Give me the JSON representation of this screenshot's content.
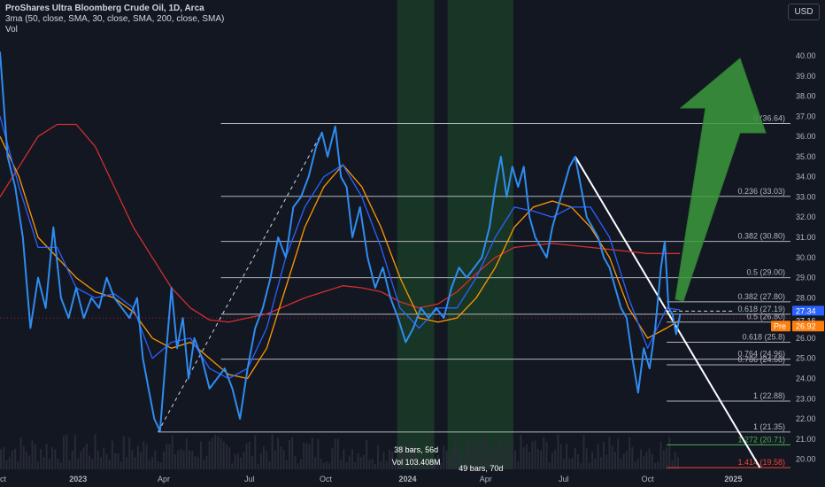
{
  "legend": {
    "title": "ProShares Ultra Bloomberg Crude Oil, 1D, Arca",
    "ma": "3ma (50, close, SMA, 30, close, SMA, 200, close, SMA)",
    "vol": "Vol"
  },
  "currency_button": "USD",
  "colors": {
    "background": "#131722",
    "price": "#2f8cf0",
    "sma50": "#ff9800",
    "sma30": "#2962ff",
    "sma200": "#d32f2f",
    "fib_line": "#b2b5be",
    "highlight_zone": "#1e5e2a",
    "arrow": "#3c9a3c",
    "pre_badge": "#ff7f0e",
    "last_badge": "#2962ff"
  },
  "chart_data": {
    "type": "line",
    "title": "ProShares Ultra Bloomberg Crude Oil, 1D, Arca",
    "ylim": [
      19.5,
      41.8
    ],
    "y_ticks": [
      20.0,
      21.0,
      22.0,
      23.0,
      24.0,
      25.0,
      26.0,
      27.0,
      28.0,
      29.0,
      30.0,
      31.0,
      32.0,
      33.0,
      34.0,
      35.0,
      36.0,
      37.0,
      38.0,
      39.0,
      40.0
    ],
    "x_tick_labels": [
      "Oct",
      "2023",
      "Apr",
      "Jul",
      "Oct",
      "2024",
      "Apr",
      "Jul",
      "Oct",
      "2025"
    ],
    "x_tick_index": [
      0,
      82,
      172,
      262,
      342,
      428,
      510,
      592,
      680,
      770
    ],
    "x_max_index": 830,
    "series": [
      {
        "name": "ProShares Ultra Bloomberg Crude Oil",
        "points": [
          [
            0,
            40.2
          ],
          [
            8,
            35.0
          ],
          [
            16,
            33.5
          ],
          [
            24,
            31.0
          ],
          [
            32,
            26.5
          ],
          [
            40,
            29.0
          ],
          [
            48,
            27.5
          ],
          [
            56,
            31.5
          ],
          [
            64,
            28.0
          ],
          [
            72,
            27.0
          ],
          [
            80,
            28.5
          ],
          [
            88,
            27.0
          ],
          [
            96,
            28.0
          ],
          [
            104,
            27.5
          ],
          [
            112,
            29.0
          ],
          [
            120,
            28.0
          ],
          [
            128,
            27.5
          ],
          [
            136,
            27.0
          ],
          [
            144,
            28.0
          ],
          [
            150,
            25.0
          ],
          [
            156,
            23.5
          ],
          [
            162,
            22.0
          ],
          [
            168,
            21.4
          ],
          [
            174,
            25.0
          ],
          [
            180,
            28.5
          ],
          [
            186,
            25.5
          ],
          [
            192,
            27.0
          ],
          [
            198,
            24.0
          ],
          [
            204,
            26.0
          ],
          [
            212,
            25.0
          ],
          [
            220,
            23.5
          ],
          [
            228,
            24.0
          ],
          [
            236,
            24.5
          ],
          [
            244,
            23.5
          ],
          [
            252,
            22.0
          ],
          [
            260,
            24.5
          ],
          [
            268,
            26.5
          ],
          [
            276,
            27.5
          ],
          [
            284,
            29.0
          ],
          [
            292,
            31.0
          ],
          [
            300,
            30.0
          ],
          [
            308,
            32.5
          ],
          [
            316,
            33.0
          ],
          [
            324,
            34.0
          ],
          [
            332,
            35.5
          ],
          [
            338,
            36.2
          ],
          [
            344,
            35.0
          ],
          [
            352,
            36.5
          ],
          [
            358,
            34.0
          ],
          [
            364,
            33.5
          ],
          [
            370,
            31.0
          ],
          [
            378,
            32.5
          ],
          [
            386,
            30.0
          ],
          [
            394,
            28.5
          ],
          [
            402,
            29.5
          ],
          [
            410,
            28.0
          ],
          [
            418,
            27.0
          ],
          [
            426,
            25.8
          ],
          [
            434,
            26.5
          ],
          [
            442,
            27.5
          ],
          [
            450,
            27.0
          ],
          [
            458,
            27.5
          ],
          [
            466,
            27.0
          ],
          [
            474,
            28.5
          ],
          [
            482,
            29.5
          ],
          [
            490,
            29.0
          ],
          [
            498,
            29.5
          ],
          [
            506,
            30.0
          ],
          [
            514,
            31.5
          ],
          [
            520,
            33.5
          ],
          [
            526,
            35.0
          ],
          [
            532,
            33.0
          ],
          [
            538,
            34.5
          ],
          [
            544,
            33.5
          ],
          [
            550,
            34.5
          ],
          [
            556,
            32.0
          ],
          [
            562,
            31.0
          ],
          [
            568,
            30.5
          ],
          [
            574,
            30.0
          ],
          [
            580,
            31.5
          ],
          [
            586,
            32.5
          ],
          [
            592,
            33.5
          ],
          [
            598,
            34.5
          ],
          [
            604,
            35.0
          ],
          [
            610,
            33.5
          ],
          [
            616,
            32.0
          ],
          [
            622,
            31.5
          ],
          [
            628,
            31.0
          ],
          [
            634,
            30.0
          ],
          [
            640,
            29.5
          ],
          [
            646,
            28.5
          ],
          [
            652,
            27.5
          ],
          [
            658,
            27.0
          ],
          [
            664,
            25.0
          ],
          [
            670,
            23.3
          ],
          [
            676,
            25.5
          ],
          [
            682,
            24.5
          ],
          [
            688,
            26.5
          ],
          [
            694,
            29.5
          ],
          [
            698,
            30.8
          ],
          [
            702,
            27.5
          ],
          [
            706,
            27.2
          ],
          [
            710,
            26.2
          ],
          [
            714,
            27.16
          ]
        ]
      },
      {
        "name": "SMA 50",
        "points": [
          [
            0,
            36.0
          ],
          [
            20,
            34.0
          ],
          [
            40,
            31.0
          ],
          [
            60,
            30.0
          ],
          [
            80,
            29.0
          ],
          [
            100,
            28.3
          ],
          [
            120,
            28.0
          ],
          [
            140,
            27.3
          ],
          [
            160,
            26.0
          ],
          [
            180,
            25.5
          ],
          [
            200,
            25.8
          ],
          [
            220,
            25.0
          ],
          [
            240,
            24.2
          ],
          [
            260,
            24.0
          ],
          [
            280,
            25.5
          ],
          [
            300,
            28.5
          ],
          [
            320,
            31.5
          ],
          [
            340,
            33.5
          ],
          [
            360,
            34.6
          ],
          [
            380,
            33.5
          ],
          [
            400,
            31.5
          ],
          [
            420,
            29.0
          ],
          [
            440,
            27.0
          ],
          [
            460,
            26.8
          ],
          [
            480,
            27.0
          ],
          [
            500,
            28.0
          ],
          [
            520,
            29.5
          ],
          [
            540,
            31.5
          ],
          [
            560,
            32.5
          ],
          [
            580,
            32.8
          ],
          [
            600,
            32.5
          ],
          [
            620,
            31.5
          ],
          [
            640,
            30.0
          ],
          [
            660,
            27.5
          ],
          [
            680,
            26.0
          ],
          [
            700,
            26.5
          ],
          [
            714,
            26.9
          ]
        ]
      },
      {
        "name": "SMA 30",
        "points": [
          [
            0,
            37.0
          ],
          [
            20,
            33.5
          ],
          [
            40,
            30.5
          ],
          [
            60,
            30.5
          ],
          [
            80,
            28.5
          ],
          [
            100,
            28.0
          ],
          [
            120,
            28.2
          ],
          [
            140,
            27.5
          ],
          [
            160,
            25.0
          ],
          [
            180,
            25.8
          ],
          [
            200,
            26.0
          ],
          [
            220,
            24.5
          ],
          [
            240,
            24.0
          ],
          [
            260,
            24.5
          ],
          [
            280,
            26.5
          ],
          [
            300,
            30.0
          ],
          [
            320,
            32.5
          ],
          [
            340,
            34.0
          ],
          [
            360,
            34.6
          ],
          [
            380,
            33.0
          ],
          [
            400,
            30.5
          ],
          [
            420,
            27.5
          ],
          [
            440,
            26.5
          ],
          [
            460,
            27.5
          ],
          [
            480,
            27.5
          ],
          [
            500,
            29.0
          ],
          [
            520,
            31.0
          ],
          [
            540,
            32.5
          ],
          [
            560,
            32.3
          ],
          [
            580,
            32.0
          ],
          [
            600,
            32.5
          ],
          [
            620,
            32.5
          ],
          [
            640,
            31.0
          ],
          [
            660,
            28.0
          ],
          [
            680,
            25.5
          ],
          [
            700,
            27.5
          ],
          [
            714,
            27.4
          ]
        ]
      },
      {
        "name": "SMA 200",
        "points": [
          [
            0,
            33.0
          ],
          [
            20,
            34.5
          ],
          [
            40,
            36.0
          ],
          [
            60,
            36.6
          ],
          [
            80,
            36.6
          ],
          [
            100,
            35.5
          ],
          [
            120,
            33.5
          ],
          [
            140,
            31.5
          ],
          [
            160,
            30.0
          ],
          [
            180,
            28.5
          ],
          [
            200,
            27.5
          ],
          [
            220,
            26.9
          ],
          [
            240,
            26.8
          ],
          [
            260,
            27.0
          ],
          [
            280,
            27.2
          ],
          [
            300,
            27.6
          ],
          [
            320,
            28.0
          ],
          [
            340,
            28.3
          ],
          [
            360,
            28.6
          ],
          [
            380,
            28.5
          ],
          [
            400,
            28.3
          ],
          [
            420,
            27.8
          ],
          [
            440,
            27.5
          ],
          [
            460,
            27.7
          ],
          [
            480,
            28.3
          ],
          [
            500,
            29.2
          ],
          [
            520,
            30.0
          ],
          [
            540,
            30.5
          ],
          [
            560,
            30.6
          ],
          [
            580,
            30.7
          ],
          [
            600,
            30.6
          ],
          [
            620,
            30.5
          ],
          [
            640,
            30.4
          ],
          [
            660,
            30.3
          ],
          [
            680,
            30.2
          ],
          [
            700,
            30.2
          ],
          [
            714,
            30.2
          ]
        ]
      }
    ],
    "last_price": {
      "value": "27.34",
      "label": "27.34"
    },
    "current_price": {
      "value": "27.16",
      "label": "27.16"
    },
    "pre_market": {
      "label": "Pre",
      "value": "26.92"
    },
    "fib_levels": [
      {
        "label": "0 (36.64)",
        "value": 36.64,
        "x_from": 232
      },
      {
        "label": "0.236 (33.03)",
        "value": 33.03,
        "x_from": 232
      },
      {
        "label": "0.382 (30.80)",
        "value": 30.8,
        "x_from": 232
      },
      {
        "label": "0.5 (29.00)",
        "value": 29.0,
        "x_from": 232
      },
      {
        "label": "0.382 (27.80)",
        "value": 27.8,
        "x_from": 700
      },
      {
        "label": "0.618 (27.19)",
        "value": 27.19,
        "x_from": 232
      },
      {
        "label": "0.5 (26.80)",
        "value": 26.8,
        "x_from": 700
      },
      {
        "label": "0.618 (25.8)",
        "value": 25.8,
        "x_from": 700
      },
      {
        "label": "0.764 (24.96)",
        "value": 24.96,
        "x_from": 232
      },
      {
        "label": "0.786 (24.68)",
        "value": 24.68,
        "x_from": 700
      },
      {
        "label": "1 (22.88)",
        "value": 22.88,
        "x_from": 700
      },
      {
        "label": "1 (21.35)",
        "value": 21.35,
        "x_from": 166
      },
      {
        "label": "1.272 (20.71)",
        "value": 20.71,
        "x_from": 700
      },
      {
        "label": "1.414 (19.58)",
        "value": 19.58,
        "x_from": 700
      }
    ],
    "zones": [
      {
        "from": 417,
        "to": 456
      },
      {
        "from": 470,
        "to": 539
      }
    ],
    "trendlines": [
      {
        "from": [
          166,
          21.35
        ],
        "to": [
          338,
          36.2
        ],
        "style": "dashed"
      },
      {
        "from": [
          604,
          35.0
        ],
        "to": [
          798,
          19.58
        ],
        "style": "solid"
      }
    ],
    "dashed_level": {
      "value": 27.34,
      "from": 700,
      "to": 770
    },
    "annotations": {
      "measure1_line1": "38 bars, 56d",
      "measure1_line2": "Vol 103.408M",
      "measure2_line1": "49 bars, 70d"
    },
    "volume": {
      "unit": "shares"
    },
    "grid": false,
    "legend_placement": "top-left",
    "arrow_direction": "up"
  }
}
